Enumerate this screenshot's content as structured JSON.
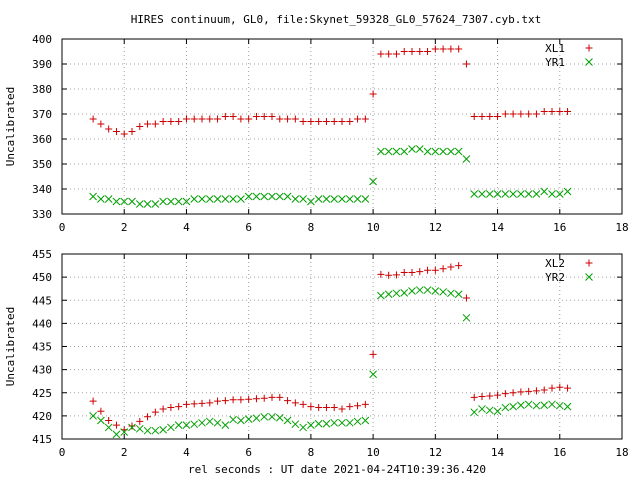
{
  "title": "HIRES continuum, GL0, file:Skynet_59328_GL0_57624_7307.cyb.txt",
  "xlabel": "rel seconds : UT date 2021-04-24T10:39:36.420",
  "colors": {
    "plus": "#cc0000",
    "cross": "#00a000",
    "axes": "#000000",
    "grid": "#a0a0a0"
  },
  "chart_data": [
    {
      "type": "scatter",
      "ylabel": "Uncalibrated",
      "xlim": [
        0,
        18
      ],
      "ylim": [
        330,
        400
      ],
      "xticks": [
        0,
        2,
        4,
        6,
        8,
        10,
        12,
        14,
        16,
        18
      ],
      "yticks": [
        330,
        340,
        350,
        360,
        370,
        380,
        390,
        400
      ],
      "legend_position": "top-right",
      "series": [
        {
          "name": "XL1",
          "marker": "plus",
          "x": [
            1.0,
            1.25,
            1.5,
            1.75,
            2.0,
            2.25,
            2.5,
            2.75,
            3.0,
            3.25,
            3.5,
            3.75,
            4.0,
            4.25,
            4.5,
            4.75,
            5.0,
            5.25,
            5.5,
            5.75,
            6.0,
            6.25,
            6.5,
            6.75,
            7.0,
            7.25,
            7.5,
            7.75,
            8.0,
            8.25,
            8.5,
            8.75,
            9.0,
            9.25,
            9.5,
            9.75,
            10.0,
            10.25,
            10.5,
            10.75,
            11.0,
            11.25,
            11.5,
            11.75,
            12.0,
            12.25,
            12.5,
            12.75,
            13.0,
            13.25,
            13.5,
            13.75,
            14.0,
            14.25,
            14.5,
            14.75,
            15.0,
            15.25,
            15.5,
            15.75,
            16.0,
            16.25
          ],
          "y": [
            368,
            366,
            364,
            363,
            362,
            363,
            365,
            366,
            366,
            367,
            367,
            367,
            368,
            368,
            368,
            368,
            368,
            369,
            369,
            368,
            368,
            369,
            369,
            369,
            368,
            368,
            368,
            367,
            367,
            367,
            367,
            367,
            367,
            367,
            368,
            368,
            378,
            394,
            394,
            394,
            395,
            395,
            395,
            395,
            396,
            396,
            396,
            396,
            390,
            369,
            369,
            369,
            369,
            370,
            370,
            370,
            370,
            370,
            371,
            371,
            371,
            371
          ]
        },
        {
          "name": "YR1",
          "marker": "cross",
          "x": [
            1.0,
            1.25,
            1.5,
            1.75,
            2.0,
            2.25,
            2.5,
            2.75,
            3.0,
            3.25,
            3.5,
            3.75,
            4.0,
            4.25,
            4.5,
            4.75,
            5.0,
            5.25,
            5.5,
            5.75,
            6.0,
            6.25,
            6.5,
            6.75,
            7.0,
            7.25,
            7.5,
            7.75,
            8.0,
            8.25,
            8.5,
            8.75,
            9.0,
            9.25,
            9.5,
            9.75,
            10.0,
            10.25,
            10.5,
            10.75,
            11.0,
            11.25,
            11.5,
            11.75,
            12.0,
            12.25,
            12.5,
            12.75,
            13.0,
            13.25,
            13.5,
            13.75,
            14.0,
            14.25,
            14.5,
            14.75,
            15.0,
            15.25,
            15.5,
            15.75,
            16.0,
            16.25
          ],
          "y": [
            337,
            336,
            336,
            335,
            335,
            335,
            334,
            334,
            334,
            335,
            335,
            335,
            335,
            336,
            336,
            336,
            336,
            336,
            336,
            336,
            337,
            337,
            337,
            337,
            337,
            337,
            336,
            336,
            335,
            336,
            336,
            336,
            336,
            336,
            336,
            336,
            343,
            355,
            355,
            355,
            355,
            356,
            356,
            355,
            355,
            355,
            355,
            355,
            352,
            338,
            338,
            338,
            338,
            338,
            338,
            338,
            338,
            338,
            339,
            338,
            338,
            339
          ]
        }
      ]
    },
    {
      "type": "scatter",
      "ylabel": "Uncalibrated",
      "xlim": [
        0,
        18
      ],
      "ylim": [
        415,
        455
      ],
      "xticks": [
        0,
        2,
        4,
        6,
        8,
        10,
        12,
        14,
        16,
        18
      ],
      "yticks": [
        415,
        420,
        425,
        430,
        435,
        440,
        445,
        450,
        455
      ],
      "legend_position": "top-right",
      "series": [
        {
          "name": "XL2",
          "marker": "plus",
          "x": [
            1.0,
            1.25,
            1.5,
            1.75,
            2.0,
            2.25,
            2.5,
            2.75,
            3.0,
            3.25,
            3.5,
            3.75,
            4.0,
            4.25,
            4.5,
            4.75,
            5.0,
            5.25,
            5.5,
            5.75,
            6.0,
            6.25,
            6.5,
            6.75,
            7.0,
            7.25,
            7.5,
            7.75,
            8.0,
            8.25,
            8.5,
            8.75,
            9.0,
            9.25,
            9.5,
            9.75,
            10.0,
            10.25,
            10.5,
            10.75,
            11.0,
            11.25,
            11.5,
            11.75,
            12.0,
            12.25,
            12.5,
            12.75,
            13.0,
            13.25,
            13.5,
            13.75,
            14.0,
            14.25,
            14.5,
            14.75,
            15.0,
            15.25,
            15.5,
            15.75,
            16.0,
            16.25
          ],
          "y": [
            423.2,
            421.0,
            419.0,
            418.0,
            417.0,
            417.8,
            418.8,
            419.8,
            420.8,
            421.5,
            421.8,
            422.0,
            422.5,
            422.6,
            422.7,
            422.8,
            423.2,
            423.3,
            423.5,
            423.5,
            423.6,
            423.7,
            423.8,
            424.0,
            424.0,
            423.3,
            422.8,
            422.5,
            422.0,
            421.8,
            421.8,
            421.8,
            421.5,
            422.0,
            422.2,
            422.5,
            433.3,
            450.6,
            450.4,
            450.5,
            451.0,
            451.0,
            451.2,
            451.5,
            451.5,
            451.8,
            452.2,
            452.5,
            445.5,
            424.0,
            424.2,
            424.3,
            424.5,
            424.8,
            425.0,
            425.2,
            425.3,
            425.4,
            425.6,
            426.0,
            426.2,
            426.0
          ]
        },
        {
          "name": "YR2",
          "marker": "cross",
          "x": [
            1.0,
            1.25,
            1.5,
            1.75,
            2.0,
            2.25,
            2.5,
            2.75,
            3.0,
            3.25,
            3.5,
            3.75,
            4.0,
            4.25,
            4.5,
            4.75,
            5.0,
            5.25,
            5.5,
            5.75,
            6.0,
            6.25,
            6.5,
            6.75,
            7.0,
            7.25,
            7.5,
            7.75,
            8.0,
            8.25,
            8.5,
            8.75,
            9.0,
            9.25,
            9.5,
            9.75,
            10.0,
            10.25,
            10.5,
            10.75,
            11.0,
            11.25,
            11.5,
            11.75,
            12.0,
            12.25,
            12.5,
            12.75,
            13.0,
            13.25,
            13.5,
            13.75,
            14.0,
            14.25,
            14.5,
            14.75,
            15.0,
            15.25,
            15.5,
            15.75,
            16.0,
            16.25
          ],
          "y": [
            420.0,
            419.0,
            417.5,
            416.0,
            416.5,
            417.5,
            417.2,
            416.8,
            416.8,
            417.0,
            417.5,
            418.0,
            418.0,
            418.2,
            418.5,
            418.8,
            418.5,
            418.0,
            419.2,
            419.0,
            419.3,
            419.5,
            419.8,
            419.8,
            419.6,
            419.0,
            418.2,
            417.5,
            418.0,
            418.3,
            418.3,
            418.5,
            418.5,
            418.5,
            418.8,
            419.0,
            429.0,
            446.0,
            446.3,
            446.5,
            446.6,
            447.0,
            447.2,
            447.2,
            447.0,
            446.8,
            446.5,
            446.3,
            441.2,
            420.8,
            421.5,
            421.2,
            421.0,
            421.8,
            422.0,
            422.3,
            422.5,
            422.2,
            422.3,
            422.5,
            422.2,
            422.0
          ]
        }
      ]
    }
  ]
}
